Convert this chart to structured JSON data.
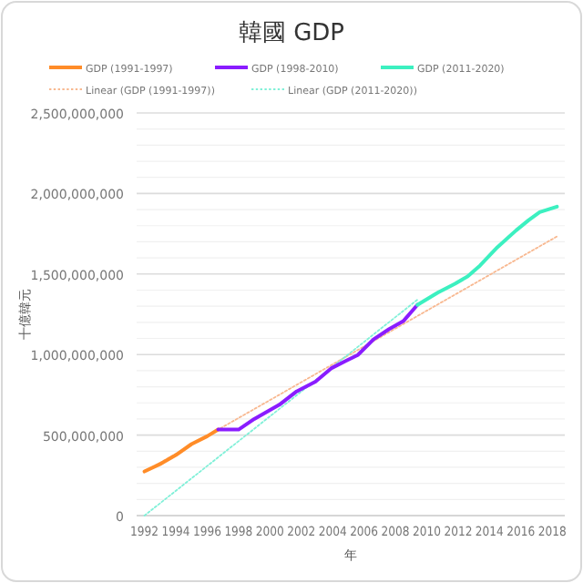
{
  "chart_data": {
    "type": "line",
    "title": "韓國 GDP",
    "xlabel": "年",
    "ylabel": "十億韓元",
    "legend": "top",
    "grid": "y",
    "marker": "none",
    "xlim": [
      1991.5,
      2018.8
    ],
    "xticks": [
      1992,
      1994,
      1996,
      1998,
      2000,
      2002,
      2004,
      2006,
      2008,
      2010,
      2012,
      2014,
      2016,
      2018
    ],
    "ylim": [
      0,
      2500000000
    ],
    "yticks": [
      {
        "value": 0,
        "label": "0"
      },
      {
        "value": 100000000,
        "label": null
      },
      {
        "value": 200000000,
        "label": null
      },
      {
        "value": 300000000,
        "label": null
      },
      {
        "value": 400000000,
        "label": null
      },
      {
        "value": 500000000,
        "label": "500,000,000"
      },
      {
        "value": 600000000,
        "label": null
      },
      {
        "value": 700000000,
        "label": null
      },
      {
        "value": 800000000,
        "label": null
      },
      {
        "value": 900000000,
        "label": null
      },
      {
        "value": 1000000000,
        "label": "1,000,000,000"
      },
      {
        "value": 1100000000,
        "label": null
      },
      {
        "value": 1200000000,
        "label": null
      },
      {
        "value": 1300000000,
        "label": null
      },
      {
        "value": 1400000000,
        "label": null
      },
      {
        "value": 1500000000,
        "label": "1,500,000,000"
      },
      {
        "value": 1600000000,
        "label": null
      },
      {
        "value": 1700000000,
        "label": null
      },
      {
        "value": 1800000000,
        "label": null
      },
      {
        "value": 1900000000,
        "label": null
      },
      {
        "value": 2000000000,
        "label": "2,000,000,000"
      },
      {
        "value": 2100000000,
        "label": null
      },
      {
        "value": 2200000000,
        "label": null
      },
      {
        "value": 2300000000,
        "label": null
      },
      {
        "value": 2400000000,
        "label": null
      },
      {
        "value": 2500000000,
        "label": "2,500,000,000"
      }
    ],
    "series": [
      {
        "name": "GDP (1991-1997)",
        "color": "#ff8c28",
        "line_style": "solid",
        "x": [
          1992,
          1993,
          1994,
          1995,
          1996,
          1996.7
        ],
        "values": [
          274000000,
          320000000,
          376000000,
          444000000,
          493000000,
          534000000
        ]
      },
      {
        "name": "GDP (1998-2010)",
        "color": "#8a1cff",
        "line_style": "solid",
        "x": [
          1996.7,
          1998,
          1999,
          2000.6,
          2001.7,
          2002.9,
          2003.9,
          2004.8,
          2005.6,
          2006.6,
          2007.6,
          2008.5,
          2009.4
        ],
        "values": [
          534000000,
          534000000,
          600000000,
          688000000,
          771000000,
          831000000,
          914000000,
          959000000,
          997000000,
          1094000000,
          1158000000,
          1207000000,
          1308000000
        ]
      },
      {
        "name": "GDP (2011-2020)",
        "color": "#3cf0c0",
        "line_style": "solid",
        "x": [
          2009.4,
          2010.7,
          2011.8,
          2012.6,
          2013.4,
          2014.5,
          2015.7,
          2016.5,
          2017.2,
          2018.3
        ],
        "values": [
          1308000000,
          1384000000,
          1440000000,
          1485000000,
          1553000000,
          1666000000,
          1771000000,
          1835000000,
          1884000000,
          1918000000
        ]
      },
      {
        "name": "Linear (GDP (1991-1997))",
        "color": "#f8b890",
        "line_style": "dotted",
        "x": [
          1992,
          2018.3
        ],
        "values": [
          273000000,
          1733000000
        ]
      },
      {
        "name": "Linear (GDP (2011-2020))",
        "color": "#80f0d8",
        "line_style": "dotted",
        "x": [
          1992,
          2009.4
        ],
        "values": [
          0,
          1340000000
        ]
      }
    ]
  }
}
